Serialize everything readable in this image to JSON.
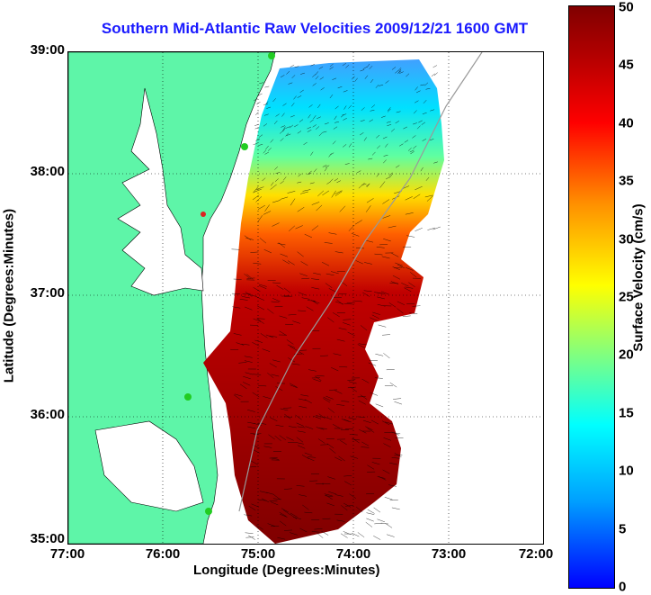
{
  "title": "Southern Mid-Atlantic Raw Velocities 2009/12/21 1600 GMT",
  "x_axis": {
    "label": "Longitude (Degrees:Minutes)",
    "ticks": [
      "77:00",
      "76:00",
      "75:00",
      "74:00",
      "73:00",
      "72:00"
    ]
  },
  "y_axis": {
    "label": "Latitude (Degrees:Minutes)",
    "ticks": [
      "39:00",
      "38:00",
      "37:00",
      "36:00",
      "35:00"
    ]
  },
  "colorbar": {
    "label": "Surface Velocity (cm/s)",
    "ticks": [
      "50",
      "45",
      "40",
      "35",
      "30",
      "25",
      "20",
      "15",
      "10",
      "5",
      "0"
    ],
    "range": [
      0,
      50
    ]
  },
  "colors": {
    "title": "#1a1aff",
    "land": "#5ef5a8",
    "water": "#ffffff",
    "station": "#22cc22",
    "station_alt": "#dd2222"
  },
  "chart_data": {
    "type": "heatmap",
    "variable": "surface velocity",
    "units": "cm/s",
    "x_range_deg_w": [
      77,
      72
    ],
    "y_range_deg_n": [
      35,
      39
    ],
    "grid": true,
    "gridlines_style": "dotted",
    "velocity_field_description": "low speeds (0-15 cm/s) in the north near 38:30-39:00, increasing to 40-50 cm/s south of 37:30"
  }
}
